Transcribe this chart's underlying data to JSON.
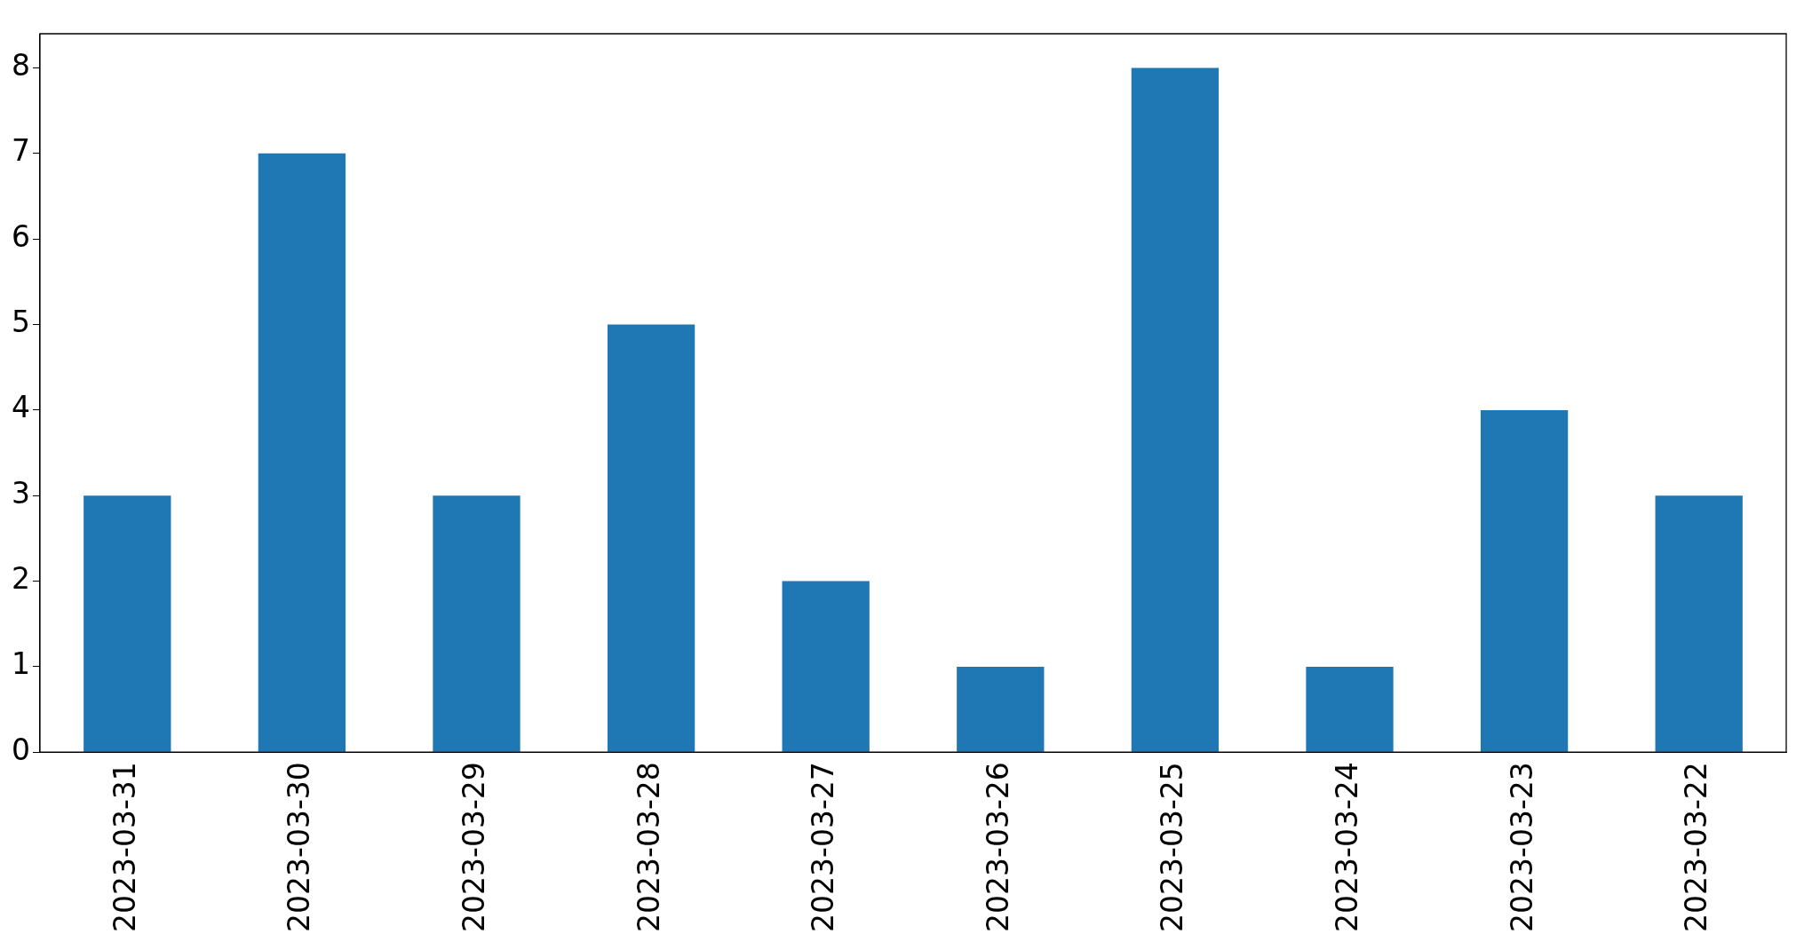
{
  "chart_data": {
    "type": "bar",
    "categories": [
      "2023-03-31",
      "2023-03-30",
      "2023-03-29",
      "2023-03-28",
      "2023-03-27",
      "2023-03-26",
      "2023-03-25",
      "2023-03-24",
      "2023-03-23",
      "2023-03-22"
    ],
    "values": [
      3,
      7,
      3,
      5,
      2,
      1,
      8,
      1,
      4,
      3
    ],
    "color": "#1f77b4",
    "ylim": [
      0,
      8.4
    ],
    "yticks": [
      0,
      1,
      2,
      3,
      4,
      5,
      6,
      7,
      8
    ],
    "grid": false,
    "legend": false
  }
}
